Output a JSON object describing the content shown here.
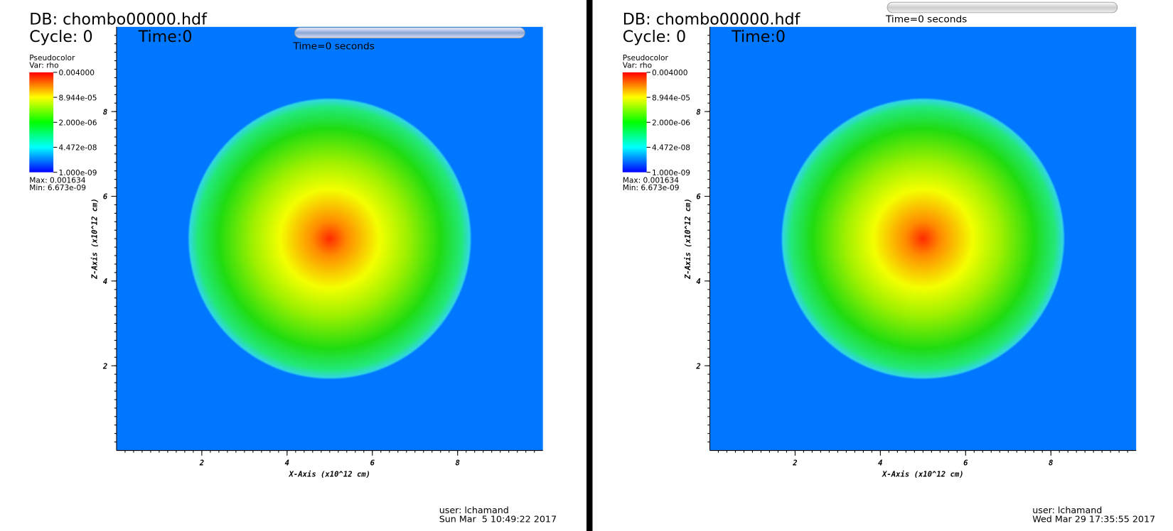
{
  "panels": [
    {
      "db": "DB: chombo00000.hdf",
      "cycle": "Cycle: 0",
      "time": "Time:0",
      "legend": {
        "title": "Pseudocolor",
        "var": "Var: rho",
        "labels": [
          "0.004000",
          "8.944e-05",
          "2.000e-06",
          "4.472e-08",
          "1.000e-09"
        ],
        "max": "Max: 0.001634",
        "min": "Min: 6.673e-09"
      },
      "slider_text": "Time=0 seconds",
      "x_label": "X-Axis (x10^12 cm)",
      "y_label": "Z-Axis (x10^12 cm)",
      "xlim": [
        0,
        10
      ],
      "ylim": [
        0,
        10
      ],
      "xticks": [
        2,
        4,
        6,
        8
      ],
      "yticks": [
        2,
        4,
        6,
        8
      ],
      "user": "user: lchamand",
      "date": "Sun Mar  5 10:49:22 2017"
    },
    {
      "db": "DB: chombo00000.hdf",
      "cycle": "Cycle: 0",
      "time": "Time:0",
      "legend": {
        "title": "Pseudocolor",
        "var": "Var: rho",
        "labels": [
          "0.004000",
          "8.944e-05",
          "2.000e-06",
          "4.472e-08",
          "1.000e-09"
        ],
        "max": "Max: 0.001634",
        "min": "Min: 6.673e-09"
      },
      "slider_text": "Time=0 seconds",
      "x_label": "X-Axis (x10^12 cm)",
      "y_label": "Z-Axis (x10^12 cm)",
      "xlim": [
        0,
        10
      ],
      "ylim": [
        0,
        10
      ],
      "xticks": [
        2,
        4,
        6,
        8
      ],
      "yticks": [
        2,
        4,
        6,
        8
      ],
      "user": "user: lchamand",
      "date": "Wed Mar 29 17:35:55 2017"
    }
  ]
}
